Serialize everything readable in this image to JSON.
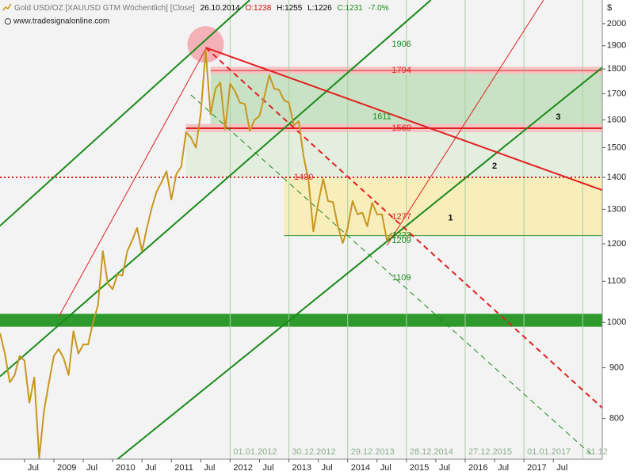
{
  "header": {
    "title": "Gold USD/OZ [XAUUSD GTM  Wöchentlich] [Close]",
    "date": "26.10.2014",
    "open": "O:1238",
    "high": "H:1255",
    "low": "L:1226",
    "close": "C:1231",
    "change": "-7.0%",
    "source": "www.tradesignalonline.com",
    "currency": "$"
  },
  "chart_data": {
    "type": "line",
    "log_scale": true,
    "x": [
      "2008-02",
      "2008-03",
      "2008-04",
      "2008-05",
      "2008-06",
      "2008-07",
      "2008-08",
      "2008-09",
      "2008-10",
      "2008-11",
      "2008-12",
      "2009-01",
      "2009-02",
      "2009-03",
      "2009-04",
      "2009-05",
      "2009-06",
      "2009-07",
      "2009-08",
      "2009-09",
      "2009-10",
      "2009-11",
      "2009-12",
      "2010-01",
      "2010-02",
      "2010-03",
      "2010-04",
      "2010-05",
      "2010-06",
      "2010-07",
      "2010-08",
      "2010-09",
      "2010-10",
      "2010-11",
      "2010-12",
      "2011-01",
      "2011-02",
      "2011-03",
      "2011-04",
      "2011-05",
      "2011-06",
      "2011-07",
      "2011-08",
      "2011-09",
      "2011-10",
      "2011-11",
      "2011-12",
      "2012-01",
      "2012-02",
      "2012-03",
      "2012-04",
      "2012-05",
      "2012-06",
      "2012-07",
      "2012-08",
      "2012-09",
      "2012-10",
      "2012-11",
      "2012-12",
      "2013-01",
      "2013-02",
      "2013-03",
      "2013-04",
      "2013-05",
      "2013-06",
      "2013-07",
      "2013-08",
      "2013-09",
      "2013-10",
      "2013-11",
      "2013-12",
      "2014-01",
      "2014-02",
      "2014-03",
      "2014-04",
      "2014-05",
      "2014-06",
      "2014-07",
      "2014-08",
      "2014-09",
      "2014-10"
    ],
    "series": [
      {
        "color": "#c8961e",
        "values": [
          975,
          930,
          870,
          885,
          925,
          915,
          830,
          880,
          730,
          815,
          870,
          925,
          940,
          920,
          885,
          980,
          930,
          950,
          950,
          1000,
          1040,
          1180,
          1095,
          1080,
          1118,
          1115,
          1180,
          1210,
          1245,
          1180,
          1245,
          1305,
          1355,
          1385,
          1420,
          1330,
          1410,
          1435,
          1555,
          1535,
          1500,
          1625,
          1880,
          1620,
          1720,
          1745,
          1565,
          1740,
          1710,
          1665,
          1660,
          1560,
          1600,
          1615,
          1690,
          1775,
          1720,
          1715,
          1675,
          1665,
          1580,
          1595,
          1470,
          1390,
          1235,
          1320,
          1395,
          1325,
          1322,
          1250,
          1202,
          1245,
          1325,
          1285,
          1290,
          1250,
          1320,
          1285,
          1285,
          1210,
          1231
        ]
      }
    ],
    "xlim": [
      "2008-02",
      "2018-05"
    ],
    "ylim": [
      728,
      2113
    ],
    "yticks": [
      800,
      900,
      1000,
      1100,
      1200,
      1300,
      1400,
      1500,
      1600,
      1700,
      1800,
      1900,
      2000
    ],
    "xticks": [
      {
        "value": "2008-07",
        "label": "Jul"
      },
      {
        "value": "2009-01",
        "label": "2009"
      },
      {
        "value": "2009-07",
        "label": "Jul"
      },
      {
        "value": "2010-01",
        "label": "2010"
      },
      {
        "value": "2010-07",
        "label": "Jul"
      },
      {
        "value": "2011-01",
        "label": "2011"
      },
      {
        "value": "2011-07",
        "label": "Jul"
      },
      {
        "value": "2012-01",
        "label": "2012"
      },
      {
        "value": "2012-07",
        "label": "Jul"
      },
      {
        "value": "2013-01",
        "label": "2013"
      },
      {
        "value": "2013-07",
        "label": "Jul"
      },
      {
        "value": "2014-01",
        "label": "2014"
      },
      {
        "value": "2014-07",
        "label": "Jul"
      },
      {
        "value": "2015-01",
        "label": "2015"
      },
      {
        "value": "2015-07",
        "label": "Jul"
      },
      {
        "value": "2016-01",
        "label": "2016"
      },
      {
        "value": "2016-07",
        "label": "Jul"
      },
      {
        "value": "2017-01",
        "label": "2017"
      },
      {
        "value": "2017-07",
        "label": "Jul"
      }
    ],
    "vlines": [
      {
        "value": "2012-01",
        "label": "01.01.2012"
      },
      {
        "value": "2013-01",
        "label": "30.12.2012"
      },
      {
        "value": "2014-01",
        "label": "29.12.2013"
      },
      {
        "value": "2015-01",
        "label": "28.12.2014"
      },
      {
        "value": "2016-01",
        "label": "27.12.2015"
      },
      {
        "value": "2017-01",
        "label": "01.01.2017"
      },
      {
        "value": "2018-01",
        "label": "31.12"
      }
    ],
    "zones": [
      {
        "from_x": "2011-04",
        "low": 1400,
        "high": 1569,
        "color": "#e3eedf"
      },
      {
        "from_x": "2011-09",
        "low": 1569,
        "high": 1794,
        "color": "#c9e2c5"
      },
      {
        "from_x": "2012-12",
        "low": 1223,
        "high": 1400,
        "color": "#f7eebc"
      },
      {
        "from_x": "2011-09",
        "low": 1780,
        "high": 1810,
        "color": "#f4c4c4"
      },
      {
        "from_x": "2011-04",
        "low": 1555,
        "high": 1585,
        "color": "#f4c4c4"
      },
      {
        "from_x": "2008-02",
        "low": 990,
        "high": 1020,
        "color": "#2e9a2e"
      }
    ],
    "levels": [
      {
        "from_x": "2011-04",
        "value": 1569,
        "color": "#e02020",
        "style": "solid",
        "thick": true
      },
      {
        "from_x": "2011-09",
        "value": 1794,
        "color": "#e02020",
        "style": "solid",
        "thick": false
      },
      {
        "from_x": "2008-02",
        "value": 1400,
        "color": "#e02020",
        "style": "dotted",
        "thick": true
      },
      {
        "from_x": "2012-12",
        "value": 1223,
        "color": "#3a9a3a",
        "style": "solid",
        "thick": false
      }
    ],
    "trend_lines": [
      {
        "color": "#1a8a1a",
        "style": "solid",
        "thick": true,
        "points": [
          [
            "2008-02",
            1251
          ],
          [
            "2012-05",
            2113
          ]
        ]
      },
      {
        "color": "#1a8a1a",
        "style": "solid",
        "thick": true,
        "points": [
          [
            "2008-02",
            882
          ],
          [
            "2015-06",
            2113
          ]
        ]
      },
      {
        "color": "#1a8a1a",
        "style": "solid",
        "thick": true,
        "points": [
          [
            "2010-02",
            728
          ],
          [
            "2018-05",
            1807
          ]
        ]
      },
      {
        "color": "#1a8a1a",
        "style": "dashed",
        "thick": false,
        "points": [
          [
            "2011-05",
            1695
          ],
          [
            "2018-03",
            734
          ]
        ]
      },
      {
        "color": "#e02020",
        "style": "solid",
        "thick": false,
        "points": [
          [
            "2009-02",
            1013
          ],
          [
            "2011-08",
            1885
          ]
        ]
      },
      {
        "color": "#e02020",
        "style": "solid",
        "thick": false,
        "points": [
          [
            "2014-09",
            1195
          ],
          [
            "2017-05",
            2113
          ]
        ]
      },
      {
        "color": "#e02020",
        "style": "solid",
        "thick": true,
        "points": [
          [
            "2011-08",
            1892
          ],
          [
            "2018-05",
            1359
          ]
        ]
      },
      {
        "color": "#e02020",
        "style": "dashed",
        "thick": true,
        "points": [
          [
            "2011-08",
            1892
          ],
          [
            "2018-05",
            820
          ]
        ]
      }
    ],
    "highlight": {
      "x": "2011-08",
      "y": 1906,
      "color": "#f4a0a8"
    },
    "level_labels": [
      {
        "x": "2014-12",
        "value": 1906,
        "color": "#1a8a1a"
      },
      {
        "x": "2014-12",
        "value": 1794,
        "color": "#e02020"
      },
      {
        "x": "2014-08",
        "value": 1611,
        "color": "#1a8a1a"
      },
      {
        "x": "2014-12",
        "value": 1569,
        "color": "#e02020"
      },
      {
        "x": "2013-04",
        "value": 1400,
        "color": "#e02020"
      },
      {
        "x": "2014-12",
        "value": 1277,
        "color": "#e02020"
      },
      {
        "x": "2014-12",
        "value": 1223,
        "color": "#1a8a1a"
      },
      {
        "x": "2014-12",
        "value": 1209,
        "color": "#1a8a1a"
      },
      {
        "x": "2014-12",
        "value": 1109,
        "color": "#1a8a1a"
      }
    ],
    "zone_numbers": [
      {
        "x": "2015-10",
        "y": 1274,
        "label": "1"
      },
      {
        "x": "2016-07",
        "y": 1436,
        "label": "2"
      },
      {
        "x": "2017-08",
        "y": 1610,
        "label": "3"
      }
    ]
  }
}
